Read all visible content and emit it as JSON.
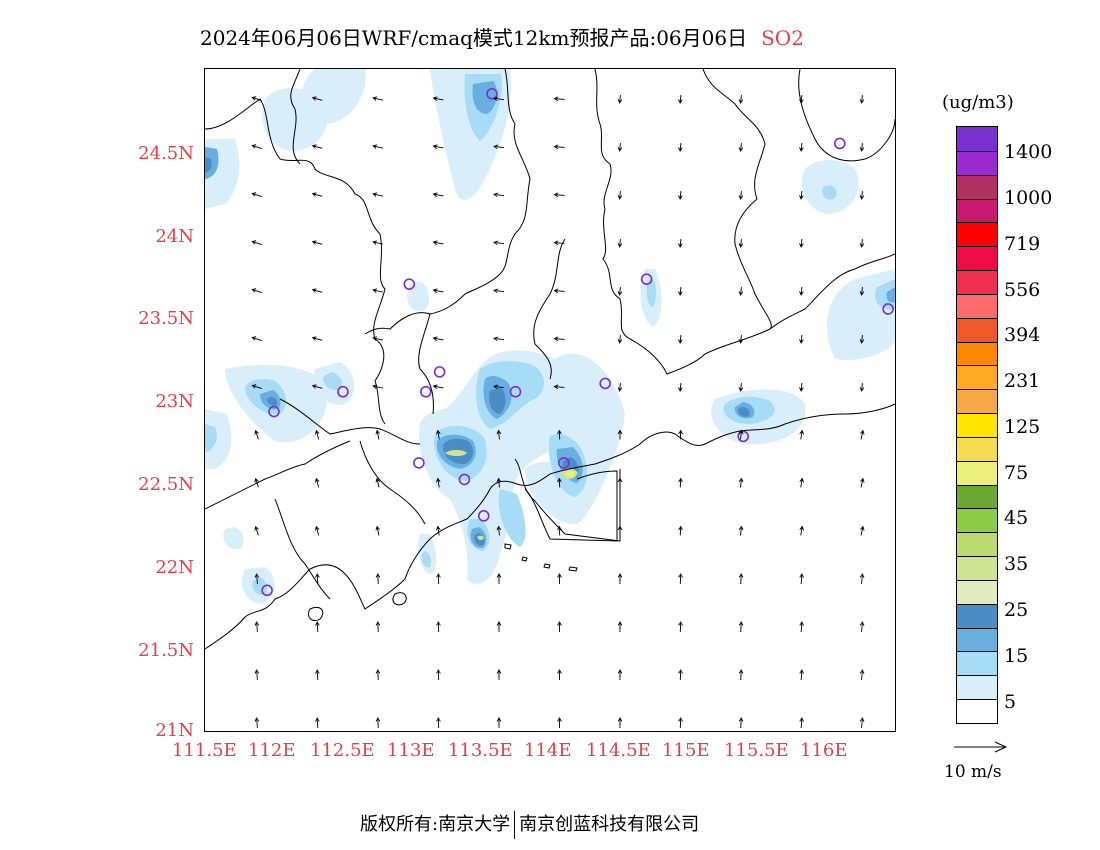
{
  "title": {
    "text": "2024年06月06日WRF/cmaq模式12km预报产品:06月06日",
    "pollutant": "SO2"
  },
  "axes": {
    "y_labels": [
      "24.5N",
      "24N",
      "23.5N",
      "23N",
      "22.5N",
      "22N",
      "21.5N",
      "21N"
    ],
    "x_labels": [
      "111.5E",
      "112E",
      "112.5E",
      "113E",
      "113.5E",
      "114E",
      "114.5E",
      "115E",
      "115.5E",
      "116E"
    ],
    "lon_range": [
      111.5,
      116.5
    ],
    "lat_range": [
      21.0,
      25.0
    ]
  },
  "colorbar": {
    "unit": "(ug/m3)",
    "labels": [
      "1400",
      "1000",
      "719",
      "556",
      "394",
      "231",
      "125",
      "75",
      "45",
      "35",
      "25",
      "15",
      "5"
    ],
    "colors_top_to_bottom": [
      "#7a2fd0",
      "#9a2ad0",
      "#b03060",
      "#c81870",
      "#ff0000",
      "#f00a46",
      "#f03050",
      "#ff6a6a",
      "#f05a2a",
      "#ff8800",
      "#ffaa22",
      "#f6a847",
      "#ffe600",
      "#f5dc50",
      "#eaf07a",
      "#6aa830",
      "#8ccc46",
      "#bcdc70",
      "#cfe490",
      "#e0ecc0",
      "#4a8cc4",
      "#68aee0",
      "#a6dcf6",
      "#d8eefa",
      "#ffffff"
    ]
  },
  "wind_reference": {
    "label": "10 m/s"
  },
  "copyright": {
    "left": "版权所有:南京大学",
    "right": "南京创蓝科技有限公司"
  },
  "map_colors": {
    "concentration_5": "#d8eefa",
    "concentration_15": "#a6dcf6",
    "concentration_20": "#68aee0",
    "concentration_25": "#4a8cc4",
    "concentration_30": "#cfe490",
    "concentration_35": "#eaf07a",
    "station_marker": "#7a2fd0",
    "boundary": "#000000"
  },
  "stations": [
    {
      "lon": 113.58,
      "lat": 24.85
    },
    {
      "lon": 116.1,
      "lat": 24.55
    },
    {
      "lon": 112.98,
      "lat": 23.7
    },
    {
      "lon": 114.7,
      "lat": 23.73
    },
    {
      "lon": 116.45,
      "lat": 23.55
    },
    {
      "lon": 113.2,
      "lat": 23.17
    },
    {
      "lon": 113.1,
      "lat": 23.05
    },
    {
      "lon": 112.5,
      "lat": 23.05
    },
    {
      "lon": 112.0,
      "lat": 22.93
    },
    {
      "lon": 113.75,
      "lat": 23.05
    },
    {
      "lon": 114.4,
      "lat": 23.1
    },
    {
      "lon": 115.4,
      "lat": 22.78
    },
    {
      "lon": 113.05,
      "lat": 22.62
    },
    {
      "lon": 113.38,
      "lat": 22.52
    },
    {
      "lon": 114.1,
      "lat": 22.62
    },
    {
      "lon": 113.52,
      "lat": 22.3
    },
    {
      "lon": 111.95,
      "lat": 21.85
    }
  ]
}
